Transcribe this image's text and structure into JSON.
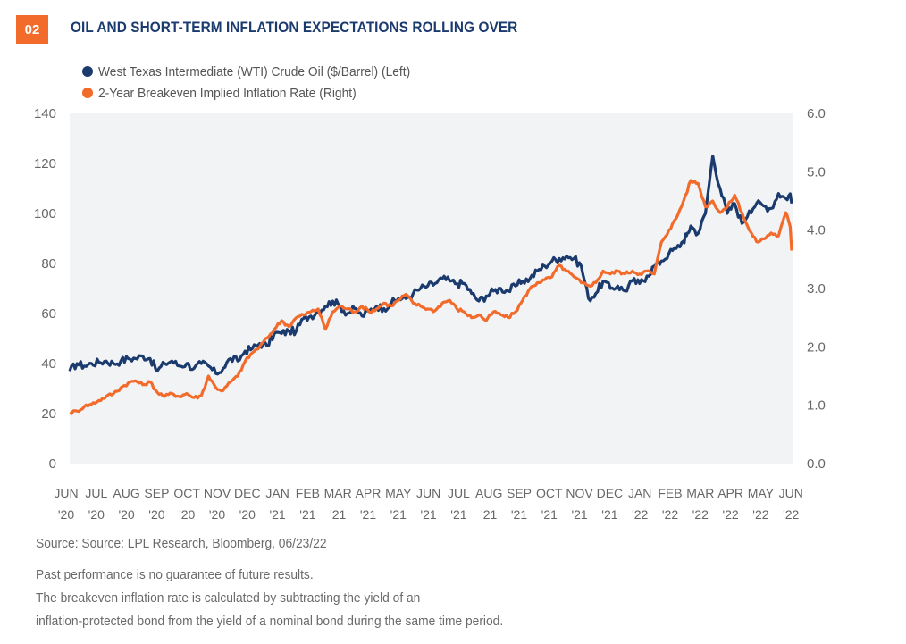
{
  "header": {
    "badge": "02",
    "title": "OIL AND SHORT-TERM INFLATION EXPECTATIONS ROLLING OVER"
  },
  "colors": {
    "wti": "#1b3b6f",
    "breakeven": "#f26b2b",
    "badge": "#f26b2b",
    "plot_bg": "#f2f3f5"
  },
  "footer": {
    "source": "Source: Source: LPL Research, Bloomberg, 06/23/22",
    "disclaimer_1": "Past performance is no guarantee of future results.",
    "disclaimer_2": "The breakeven inflation rate is calculated by subtracting the yield of an",
    "disclaimer_3": "inflation-protected bond from the yield of a nominal bond during the same time period."
  },
  "chart_data": {
    "type": "line",
    "title": "OIL AND SHORT-TERM INFLATION EXPECTATIONS ROLLING OVER",
    "legend_position": "top-left",
    "grid": false,
    "x_tick_labels": [
      [
        "JUN",
        "'20"
      ],
      [
        "JUL",
        "'20"
      ],
      [
        "AUG",
        "'20"
      ],
      [
        "SEP",
        "'20"
      ],
      [
        "OCT",
        "'20"
      ],
      [
        "NOV",
        "'20"
      ],
      [
        "DEC",
        "'20"
      ],
      [
        "JAN",
        "'21"
      ],
      [
        "FEB",
        "'21"
      ],
      [
        "MAR",
        "'21"
      ],
      [
        "APR",
        "'21"
      ],
      [
        "MAY",
        "'21"
      ],
      [
        "JUN",
        "'21"
      ],
      [
        "JUL",
        "'21"
      ],
      [
        "AUG",
        "'21"
      ],
      [
        "SEP",
        "'21"
      ],
      [
        "OCT",
        "'21"
      ],
      [
        "NOV",
        "'21"
      ],
      [
        "DEC",
        "'21"
      ],
      [
        "JAN",
        "'22"
      ],
      [
        "FEB",
        "'22"
      ],
      [
        "MAR",
        "'22"
      ],
      [
        "APR",
        "'22"
      ],
      [
        "MAY",
        "'22"
      ],
      [
        "JUN",
        "'22"
      ]
    ],
    "x_range_months": [
      0,
      24.7
    ],
    "y_left": {
      "label": "",
      "range": [
        0,
        140
      ],
      "ticks": [
        "0",
        "20",
        "40",
        "60",
        "80",
        "100",
        "120",
        "140"
      ],
      "tick_values": [
        0,
        20,
        40,
        60,
        80,
        100,
        120,
        140
      ]
    },
    "y_right": {
      "label": "",
      "range": [
        0,
        6
      ],
      "ticks": [
        "0.0",
        "1.0",
        "2.0",
        "3.0",
        "4.0",
        "5.0",
        "6.0"
      ],
      "tick_values": [
        0,
        1,
        2,
        3,
        4,
        5,
        6
      ]
    },
    "series": [
      {
        "name": "West Texas Intermediate (WTI) Crude Oil ($/Barrel) (Left)",
        "axis": "left",
        "x_months": [
          0,
          0.25,
          0.5,
          0.75,
          1,
          1.25,
          1.5,
          1.75,
          2,
          2.25,
          2.5,
          2.75,
          3,
          3.25,
          3.5,
          3.75,
          4,
          4.25,
          4.5,
          4.75,
          5,
          5.25,
          5.5,
          5.75,
          6,
          6.25,
          6.5,
          6.75,
          7,
          7.25,
          7.5,
          7.75,
          8,
          8.25,
          8.5,
          8.75,
          9,
          9.25,
          9.5,
          9.75,
          10,
          10.25,
          10.5,
          10.75,
          11,
          11.25,
          11.5,
          11.75,
          12,
          12.25,
          12.5,
          12.75,
          13,
          13.25,
          13.5,
          13.75,
          14,
          14.25,
          14.5,
          14.75,
          15,
          15.25,
          15.5,
          15.75,
          16,
          16.25,
          16.5,
          16.75,
          17,
          17.25,
          17.5,
          17.75,
          18,
          18.25,
          18.5,
          18.75,
          19,
          19.25,
          19.5,
          19.75,
          20,
          20.25,
          20.5,
          20.75,
          21,
          21.1,
          21.25,
          21.5,
          21.75,
          22,
          22.25,
          22.5,
          22.75,
          23,
          23.25,
          23.5,
          23.75,
          24,
          24.25,
          24.5,
          24.7
        ],
        "values": [
          37,
          40,
          39,
          40,
          40.5,
          41,
          40,
          41,
          42,
          42,
          43,
          42,
          37,
          40,
          41,
          39,
          40,
          38,
          40,
          39,
          36,
          38,
          42,
          41,
          45,
          46,
          48,
          47,
          52,
          52,
          53,
          53,
          58,
          59,
          61,
          63,
          65,
          63,
          60,
          62,
          59,
          61,
          63,
          62,
          64,
          66,
          66,
          68,
          70,
          71,
          72,
          74,
          73,
          72,
          72,
          68,
          65,
          67,
          69,
          70,
          69,
          71,
          73,
          74,
          77,
          79,
          81,
          82,
          83,
          82,
          79,
          66,
          68,
          73,
          70,
          71,
          69,
          73,
          72,
          75,
          79,
          81,
          84,
          86,
          89,
          91,
          95,
          92,
          100,
          123,
          110,
          100,
          104,
          96,
          101,
          104,
          103,
          102,
          108,
          106,
          108,
          112,
          115,
          120,
          119,
          113,
          104
        ]
      },
      {
        "name": "2-Year Breakeven Implied Inflation Rate (Right)",
        "axis": "right",
        "x_months": [
          0,
          0.25,
          0.5,
          0.75,
          1,
          1.25,
          1.5,
          1.75,
          2,
          2.25,
          2.5,
          2.75,
          3,
          3.25,
          3.5,
          3.75,
          4,
          4.25,
          4.5,
          4.75,
          5,
          5.25,
          5.5,
          5.75,
          6,
          6.25,
          6.5,
          6.75,
          7,
          7.25,
          7.5,
          7.75,
          8,
          8.25,
          8.5,
          8.75,
          9,
          9.25,
          9.5,
          9.75,
          10,
          10.25,
          10.5,
          10.75,
          11,
          11.25,
          11.5,
          11.75,
          12,
          12.25,
          12.5,
          12.75,
          13,
          13.25,
          13.5,
          13.75,
          14,
          14.25,
          14.5,
          14.75,
          15,
          15.25,
          15.5,
          15.75,
          16,
          16.25,
          16.5,
          16.75,
          17,
          17.25,
          17.5,
          17.75,
          18,
          18.25,
          18.5,
          18.75,
          19,
          19.25,
          19.5,
          19.75,
          20,
          20.25,
          20.5,
          20.75,
          21,
          21.25,
          21.5,
          21.75,
          22,
          22.25,
          22.5,
          22.75,
          23,
          23.25,
          23.5,
          23.75,
          24,
          24.25,
          24.5,
          24.7
        ],
        "values": [
          0.87,
          0.9,
          0.98,
          1.02,
          1.08,
          1.15,
          1.2,
          1.3,
          1.38,
          1.42,
          1.35,
          1.4,
          1.22,
          1.15,
          1.2,
          1.15,
          1.2,
          1.13,
          1.16,
          1.5,
          1.3,
          1.25,
          1.4,
          1.5,
          1.75,
          1.9,
          2.0,
          2.15,
          2.3,
          2.45,
          2.35,
          2.5,
          2.55,
          2.6,
          2.65,
          2.3,
          2.6,
          2.7,
          2.65,
          2.6,
          2.7,
          2.6,
          2.65,
          2.75,
          2.7,
          2.8,
          2.9,
          2.75,
          2.7,
          2.65,
          2.62,
          2.75,
          2.8,
          2.65,
          2.6,
          2.5,
          2.55,
          2.45,
          2.6,
          2.55,
          2.5,
          2.6,
          2.8,
          3.0,
          3.1,
          3.15,
          3.2,
          3.4,
          3.3,
          3.2,
          3.1,
          3.05,
          3.1,
          3.3,
          3.25,
          3.3,
          3.25,
          3.3,
          3.25,
          3.3,
          3.25,
          3.8,
          4.0,
          4.2,
          4.5,
          4.85,
          4.8,
          4.4,
          4.5,
          4.3,
          4.4,
          4.6,
          4.3,
          4.0,
          3.8,
          3.85,
          3.95,
          3.9,
          4.3,
          4.0,
          3.65
        ]
      }
    ]
  }
}
